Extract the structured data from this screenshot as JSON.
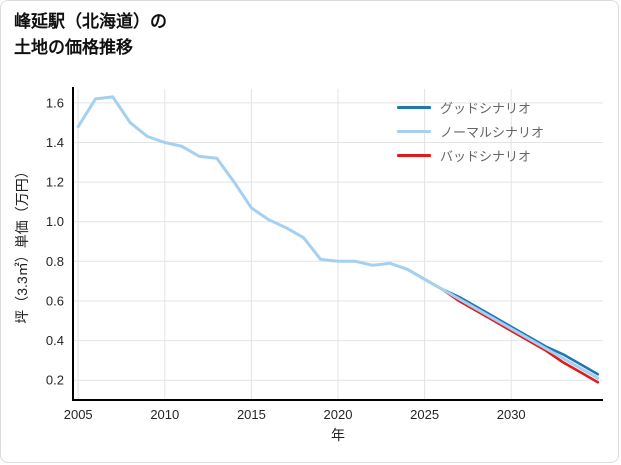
{
  "header": {
    "title_line1": "峰延駅（北海道）の",
    "title_line2": "土地の価格推移"
  },
  "chart_data": {
    "type": "line",
    "title": "峰延駅（北海道）の土地の価格推移",
    "xlabel": "年",
    "ylabel": "坪（3.3㎡）単価（万円）",
    "xlim": [
      2004.7,
      2035.3
    ],
    "ylim": [
      0.1,
      1.67
    ],
    "x_ticks": [
      2005,
      2010,
      2015,
      2020,
      2025,
      2030
    ],
    "y_ticks": [
      0.2,
      0.4,
      0.6,
      0.8,
      1.0,
      1.2,
      1.4,
      1.6
    ],
    "grid": true,
    "legend_position": "top-right",
    "series": [
      {
        "name": "グッドシナリオ",
        "color": "#1f77b4",
        "x": [
          2024,
          2025,
          2026,
          2027,
          2028,
          2029,
          2030,
          2031,
          2032,
          2033,
          2034,
          2035
        ],
        "y": [
          0.76,
          0.71,
          0.66,
          0.62,
          0.57,
          0.52,
          0.47,
          0.42,
          0.37,
          0.33,
          0.28,
          0.23
        ]
      },
      {
        "name": "ノーマルシナリオ",
        "color": "#a5d0f0",
        "x": [
          2005,
          2006,
          2007,
          2008,
          2009,
          2010,
          2011,
          2012,
          2013,
          2014,
          2015,
          2016,
          2017,
          2018,
          2019,
          2020,
          2021,
          2022,
          2023,
          2024,
          2025,
          2026,
          2027,
          2028,
          2029,
          2030,
          2031,
          2032,
          2033,
          2034,
          2035
        ],
        "y": [
          1.48,
          1.62,
          1.63,
          1.5,
          1.43,
          1.4,
          1.38,
          1.33,
          1.32,
          1.2,
          1.07,
          1.01,
          0.97,
          0.92,
          0.81,
          0.8,
          0.8,
          0.78,
          0.79,
          0.76,
          0.71,
          0.66,
          0.61,
          0.56,
          0.51,
          0.46,
          0.41,
          0.36,
          0.31,
          0.26,
          0.21
        ]
      },
      {
        "name": "バッドシナリオ",
        "color": "#e31a1c",
        "x": [
          2024,
          2025,
          2026,
          2027,
          2028,
          2029,
          2030,
          2031,
          2032,
          2033,
          2034,
          2035
        ],
        "y": [
          0.76,
          0.71,
          0.66,
          0.6,
          0.55,
          0.5,
          0.45,
          0.4,
          0.35,
          0.29,
          0.24,
          0.19
        ]
      }
    ]
  }
}
